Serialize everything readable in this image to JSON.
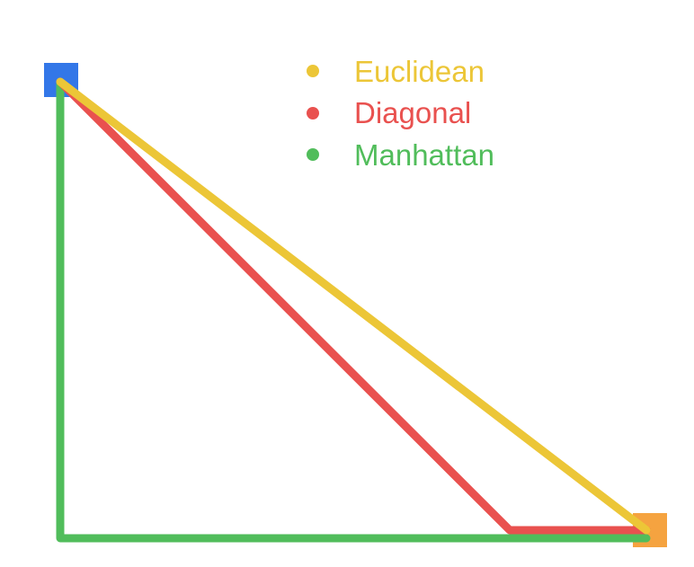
{
  "diagram": {
    "start": {
      "icon": "start-square-icon",
      "color": "#3377e8"
    },
    "goal": {
      "icon": "goal-square-icon",
      "color": "#f5a340"
    }
  },
  "legend": {
    "items": [
      {
        "key": "euclidean",
        "label": "Euclidean",
        "color": "#ecc637"
      },
      {
        "key": "diagonal",
        "label": "Diagonal",
        "color": "#e9514f"
      },
      {
        "key": "manhattan",
        "label": "Manhattan",
        "color": "#51bd5b"
      }
    ]
  }
}
